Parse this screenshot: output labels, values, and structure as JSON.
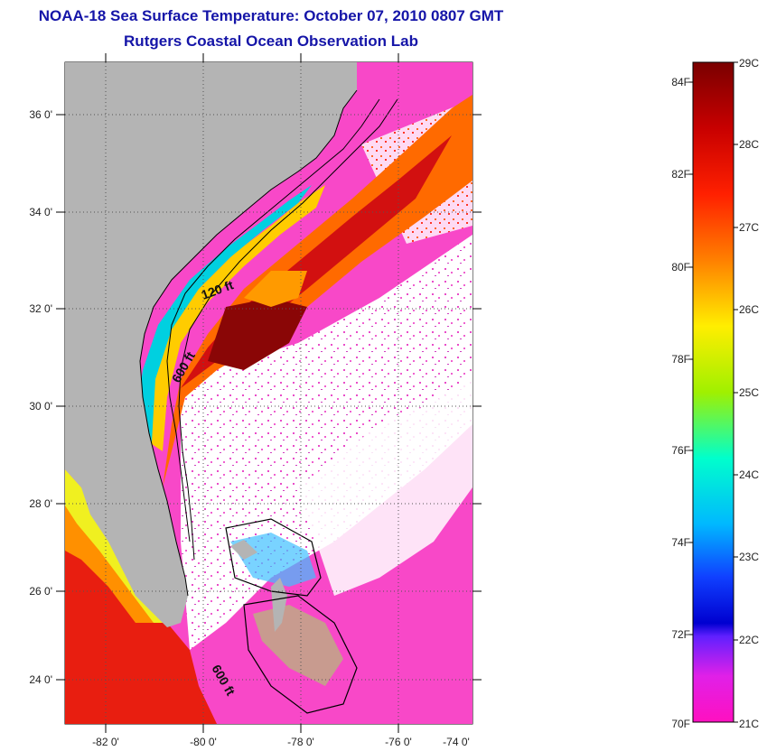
{
  "header": {
    "title": "NOAA-18 Sea Surface Temperature:  October 07, 2010 0807 GMT",
    "subtitle": "Rutgers Coastal Ocean Observation Lab"
  },
  "map": {
    "lon_ticks": [
      "-82 0'",
      "-80 0'",
      "-78 0'",
      "-76 0'",
      "-74 0'"
    ],
    "lat_ticks": [
      "36 0'",
      "34 0'",
      "32 0'",
      "30 0'",
      "28 0'",
      "26 0'",
      "24 0'"
    ],
    "isobath_labels": [
      "120 ft",
      "600 ft",
      "600 ft"
    ],
    "land_color": "#b4b4b4",
    "grid": "dotted"
  },
  "colorbar": {
    "fahrenheit": [
      "84F",
      "82F",
      "80F",
      "78F",
      "76F",
      "74F",
      "72F",
      "70F"
    ],
    "celsius": [
      "29C",
      "28C",
      "27C",
      "26C",
      "25C",
      "24C",
      "23C",
      "22C",
      "21C"
    ],
    "range_c": [
      21,
      29
    ],
    "range_f": [
      70,
      84
    ]
  }
}
